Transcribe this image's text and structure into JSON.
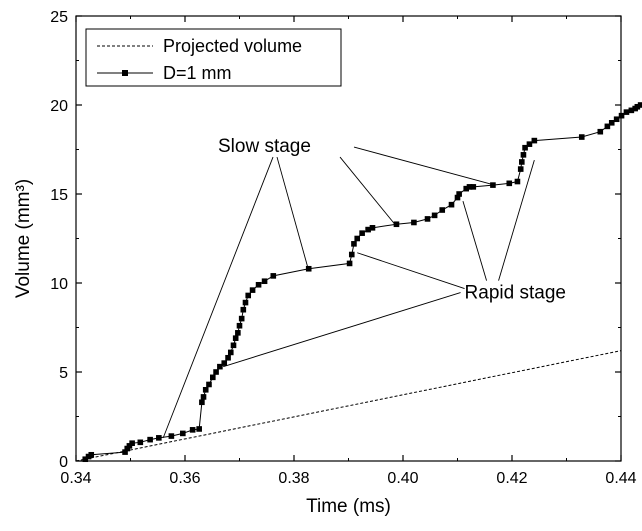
{
  "chart_data": {
    "type": "line",
    "title": "",
    "xlabel": "Time (ms)",
    "ylabel": "Volume (mm³)",
    "xlim": [
      0.34,
      0.44
    ],
    "ylim": [
      0,
      25
    ],
    "x_ticks": [
      0.34,
      0.36,
      0.38,
      0.4,
      0.42,
      0.44
    ],
    "x_tick_labels": [
      "0.34",
      "0.36",
      "0.38",
      "0.40",
      "0.42",
      "0.44"
    ],
    "y_ticks": [
      0,
      5,
      10,
      15,
      20,
      25
    ],
    "y_tick_labels": [
      "0",
      "5",
      "10",
      "15",
      "20",
      "25"
    ],
    "grid": false,
    "legend_position": "top-left",
    "series": [
      {
        "name": "Projected volume",
        "style": "dashed",
        "x": [
          0.34,
          0.44
        ],
        "y": [
          0.0,
          6.2
        ]
      },
      {
        "name": "D=1 mm",
        "style": "solid-square-markers",
        "x": [
          0.3417,
          0.3423,
          0.3428,
          0.349,
          0.3494,
          0.3498,
          0.3503,
          0.3518,
          0.3536,
          0.3552,
          0.3575,
          0.3596,
          0.3614,
          0.3626,
          0.3631,
          0.3634,
          0.3638,
          0.3644,
          0.3651,
          0.3657,
          0.3664,
          0.3672,
          0.3679,
          0.3684,
          0.3689,
          0.3693,
          0.3697,
          0.37,
          0.3704,
          0.3707,
          0.3711,
          0.3716,
          0.3724,
          0.3735,
          0.3746,
          0.3762,
          0.3827,
          0.3902,
          0.3906,
          0.391,
          0.3916,
          0.3925,
          0.3936,
          0.3944,
          0.3988,
          0.402,
          0.4045,
          0.4058,
          0.4072,
          0.4089,
          0.41,
          0.4103,
          0.4116,
          0.4122,
          0.4129,
          0.4165,
          0.4195,
          0.421,
          0.4216,
          0.4218,
          0.4221,
          0.4224,
          0.4232,
          0.4241,
          0.4328,
          0.4362,
          0.4375,
          0.4383,
          0.4392,
          0.4401,
          0.441,
          0.4419,
          0.4426,
          0.443,
          0.4436
        ],
        "y": [
          0.1,
          0.25,
          0.35,
          0.5,
          0.7,
          0.85,
          1.0,
          1.05,
          1.2,
          1.3,
          1.4,
          1.55,
          1.75,
          1.8,
          3.3,
          3.6,
          4.0,
          4.3,
          4.7,
          5.0,
          5.3,
          5.5,
          5.8,
          6.1,
          6.5,
          6.9,
          7.2,
          7.6,
          8.0,
          8.5,
          8.9,
          9.3,
          9.6,
          9.9,
          10.1,
          10.4,
          10.8,
          11.1,
          11.6,
          12.2,
          12.5,
          12.8,
          13.0,
          13.1,
          13.3,
          13.4,
          13.6,
          13.8,
          14.1,
          14.4,
          14.8,
          15.0,
          15.3,
          15.4,
          15.4,
          15.5,
          15.6,
          15.7,
          16.4,
          16.8,
          17.2,
          17.6,
          17.8,
          18.0,
          18.2,
          18.5,
          18.8,
          19.0,
          19.2,
          19.4,
          19.6,
          19.7,
          19.8,
          19.9,
          20.0
        ]
      }
    ],
    "annotations": [
      {
        "text": "Slow stage",
        "anchor_x": 0.3778,
        "anchor_y": 17.3
      },
      {
        "text": "Rapid stage",
        "anchor_x": 0.4168,
        "anchor_y": 8.9
      }
    ]
  }
}
